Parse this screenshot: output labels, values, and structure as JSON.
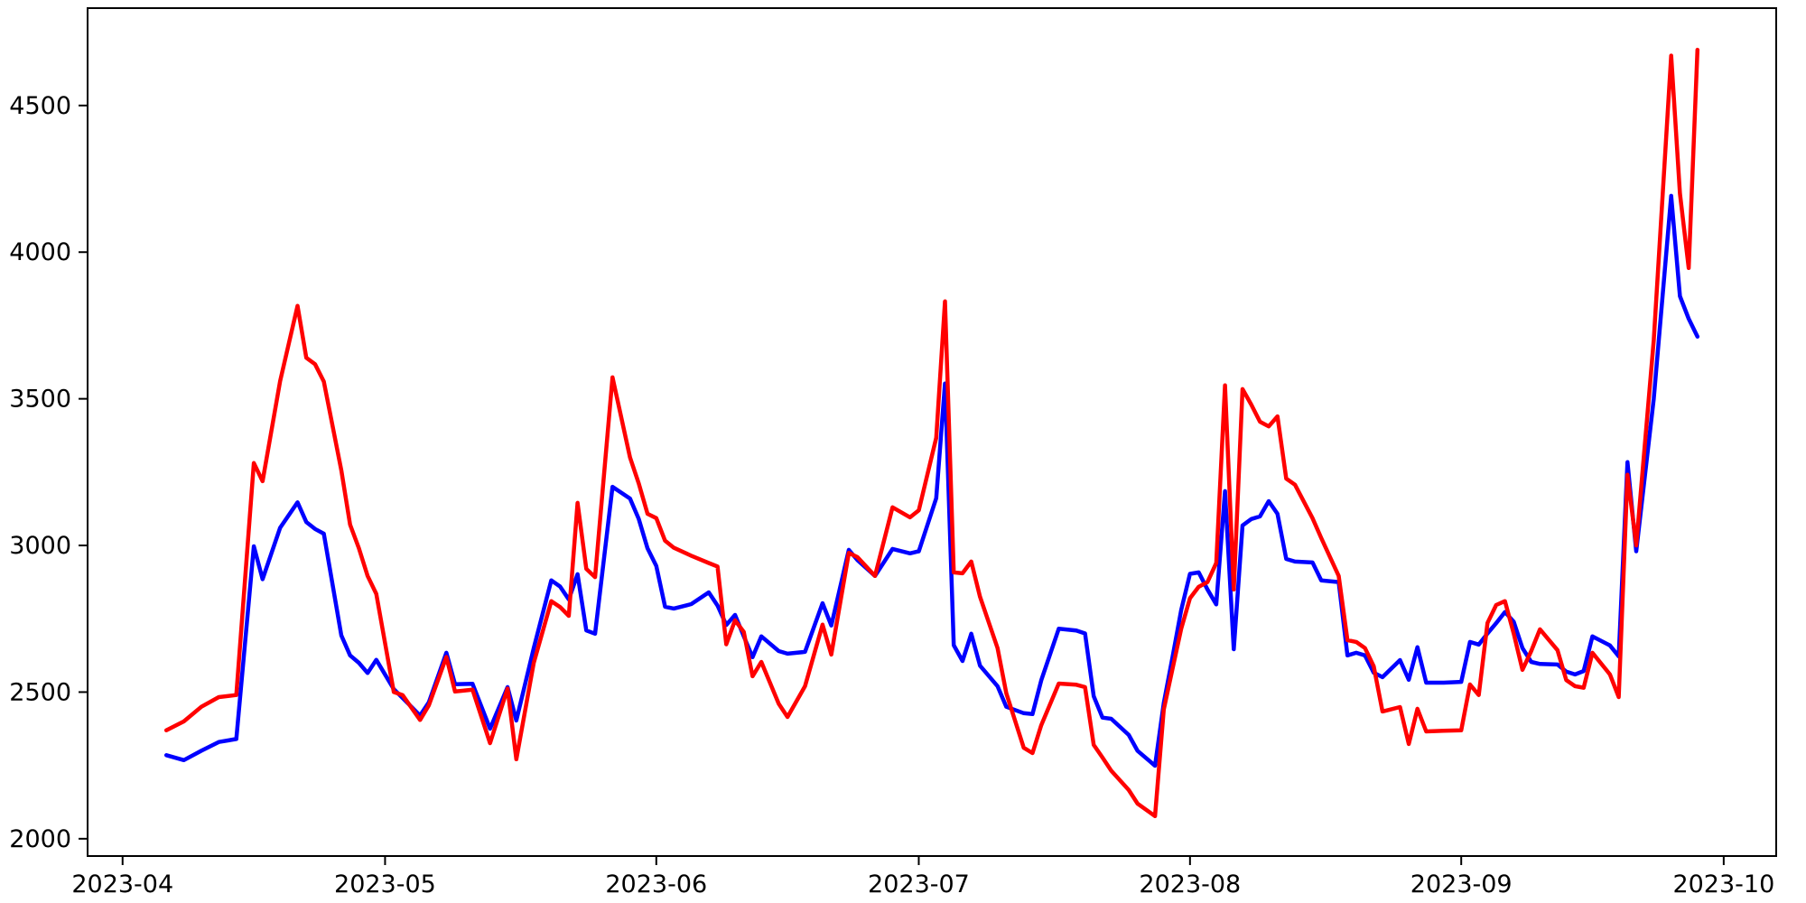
{
  "figure": {
    "background": "#ffffff",
    "plot_background": "#ffffff",
    "spine_color": "#000000"
  },
  "chart_data": {
    "type": "line",
    "title": "",
    "xlabel": "",
    "ylabel": "",
    "grid": false,
    "legend": null,
    "x_tick_labels": [
      "2023-04",
      "2023-05",
      "2023-06",
      "2023-07",
      "2023-08",
      "2023-09",
      "2023-10"
    ],
    "x_tick_dates": [
      "2023-04-01",
      "2023-05-01",
      "2023-06-01",
      "2023-07-01",
      "2023-08-01",
      "2023-09-01",
      "2023-10-01"
    ],
    "y_ticks": [
      2000,
      2500,
      3000,
      3500,
      4000,
      4500
    ],
    "y_tick_labels": [
      "2000",
      "2500",
      "3000",
      "3500",
      "4000",
      "4500"
    ],
    "ylim": [
      1941,
      4832
    ],
    "xlim_dates": [
      "2023-03-28",
      "2023-10-07"
    ],
    "dates": [
      "2023-04-06",
      "2023-04-08",
      "2023-04-10",
      "2023-04-12",
      "2023-04-14",
      "2023-04-16",
      "2023-04-17",
      "2023-04-19",
      "2023-04-21",
      "2023-04-22",
      "2023-04-23",
      "2023-04-24",
      "2023-04-26",
      "2023-04-27",
      "2023-04-28",
      "2023-04-29",
      "2023-04-30",
      "2023-05-02",
      "2023-05-03",
      "2023-05-05",
      "2023-05-06",
      "2023-05-08",
      "2023-05-09",
      "2023-05-11",
      "2023-05-13",
      "2023-05-15",
      "2023-05-16",
      "2023-05-18",
      "2023-05-20",
      "2023-05-21",
      "2023-05-22",
      "2023-05-23",
      "2023-05-24",
      "2023-05-25",
      "2023-05-27",
      "2023-05-29",
      "2023-05-30",
      "2023-05-31",
      "2023-06-01",
      "2023-06-02",
      "2023-06-03",
      "2023-06-05",
      "2023-06-07",
      "2023-06-08",
      "2023-06-09",
      "2023-06-10",
      "2023-06-11",
      "2023-06-12",
      "2023-06-13",
      "2023-06-15",
      "2023-06-16",
      "2023-06-18",
      "2023-06-20",
      "2023-06-21",
      "2023-06-23",
      "2023-06-24",
      "2023-06-26",
      "2023-06-28",
      "2023-06-30",
      "2023-07-01",
      "2023-07-03",
      "2023-07-04",
      "2023-07-05",
      "2023-07-06",
      "2023-07-07",
      "2023-07-08",
      "2023-07-10",
      "2023-07-11",
      "2023-07-13",
      "2023-07-14",
      "2023-07-15",
      "2023-07-17",
      "2023-07-19",
      "2023-07-20",
      "2023-07-21",
      "2023-07-22",
      "2023-07-23",
      "2023-07-25",
      "2023-07-26",
      "2023-07-28",
      "2023-07-29",
      "2023-07-30",
      "2023-07-31",
      "2023-08-01",
      "2023-08-02",
      "2023-08-03",
      "2023-08-04",
      "2023-08-05",
      "2023-08-06",
      "2023-08-07",
      "2023-08-08",
      "2023-08-09",
      "2023-08-10",
      "2023-08-11",
      "2023-08-12",
      "2023-08-13",
      "2023-08-15",
      "2023-08-16",
      "2023-08-18",
      "2023-08-19",
      "2023-08-20",
      "2023-08-21",
      "2023-08-22",
      "2023-08-23",
      "2023-08-25",
      "2023-08-26",
      "2023-08-27",
      "2023-08-28",
      "2023-08-30",
      "2023-09-01",
      "2023-09-02",
      "2023-09-03",
      "2023-09-04",
      "2023-09-05",
      "2023-09-06",
      "2023-09-07",
      "2023-09-08",
      "2023-09-09",
      "2023-09-10",
      "2023-09-12",
      "2023-09-13",
      "2023-09-14",
      "2023-09-15",
      "2023-09-16",
      "2023-09-18",
      "2023-09-19",
      "2023-09-20",
      "2023-09-21",
      "2023-09-23",
      "2023-09-25",
      "2023-09-26",
      "2023-09-27",
      "2023-09-28"
    ],
    "series": [
      {
        "name": "blue-series",
        "color": "#0000ff",
        "values": [
          2285,
          2268,
          2300,
          2330,
          2340,
          2997,
          2885,
          3060,
          3147,
          3080,
          3056,
          3040,
          2693,
          2625,
          2600,
          2565,
          2610,
          2510,
          2480,
          2420,
          2465,
          2634,
          2527,
          2528,
          2375,
          2517,
          2403,
          2650,
          2881,
          2860,
          2816,
          2902,
          2710,
          2699,
          3200,
          3160,
          3090,
          2990,
          2930,
          2791,
          2785,
          2800,
          2840,
          2795,
          2729,
          2763,
          2690,
          2619,
          2690,
          2640,
          2631,
          2637,
          2803,
          2727,
          2985,
          2950,
          2896,
          2988,
          2973,
          2980,
          3161,
          3552,
          2660,
          2606,
          2699,
          2590,
          2520,
          2450,
          2428,
          2425,
          2540,
          2716,
          2710,
          2700,
          2486,
          2413,
          2409,
          2354,
          2300,
          2249,
          2463,
          2620,
          2780,
          2903,
          2908,
          2850,
          2799,
          3185,
          2646,
          3068,
          3090,
          3099,
          3151,
          3108,
          2954,
          2945,
          2942,
          2881,
          2875,
          2625,
          2634,
          2625,
          2566,
          2551,
          2609,
          2542,
          2653,
          2532,
          2532,
          2535,
          2671,
          2662,
          2700,
          2735,
          2773,
          2740,
          2650,
          2603,
          2596,
          2594,
          2570,
          2560,
          2572,
          2690,
          2659,
          2622,
          3284,
          2980,
          3500,
          4192,
          3850,
          3773,
          3712
        ]
      },
      {
        "name": "red-series",
        "color": "#ff0000",
        "values": [
          2370,
          2400,
          2450,
          2483,
          2490,
          3281,
          3219,
          3560,
          3817,
          3640,
          3618,
          3559,
          3256,
          3071,
          2991,
          2896,
          2835,
          2500,
          2490,
          2405,
          2455,
          2620,
          2502,
          2508,
          2326,
          2512,
          2271,
          2600,
          2810,
          2790,
          2760,
          3145,
          2920,
          2892,
          3573,
          3300,
          3211,
          3108,
          3093,
          3016,
          2992,
          2965,
          2940,
          2928,
          2663,
          2745,
          2705,
          2554,
          2603,
          2460,
          2415,
          2520,
          2730,
          2628,
          2975,
          2960,
          2896,
          3130,
          3096,
          3120,
          3367,
          3832,
          2908,
          2905,
          2945,
          2825,
          2650,
          2496,
          2310,
          2292,
          2387,
          2529,
          2525,
          2517,
          2320,
          2277,
          2232,
          2166,
          2120,
          2077,
          2441,
          2580,
          2716,
          2820,
          2859,
          2875,
          2940,
          3546,
          2850,
          3533,
          3480,
          3422,
          3406,
          3440,
          3228,
          3207,
          3093,
          3025,
          2896,
          2677,
          2671,
          2650,
          2588,
          2434,
          2449,
          2323,
          2443,
          2366,
          2368,
          2370,
          2526,
          2490,
          2736,
          2797,
          2810,
          2700,
          2576,
          2640,
          2714,
          2643,
          2541,
          2520,
          2515,
          2634,
          2560,
          2483,
          3241,
          3000,
          3700,
          4670,
          4200,
          3946,
          4690
        ]
      }
    ]
  }
}
